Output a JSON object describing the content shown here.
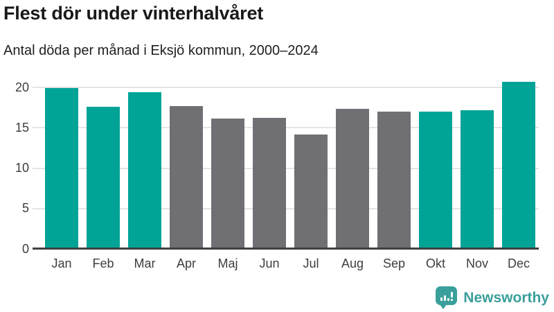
{
  "chart_data": {
    "type": "bar",
    "title": "Flest dör under vinterhalvåret",
    "subtitle": "Antal döda per månad i Eksjö kommun, 2000–2024",
    "categories": [
      "Jan",
      "Feb",
      "Mar",
      "Apr",
      "Maj",
      "Jun",
      "Jul",
      "Aug",
      "Sep",
      "Okt",
      "Nov",
      "Dec"
    ],
    "values": [
      19.9,
      17.6,
      19.4,
      17.7,
      16.1,
      16.2,
      14.2,
      17.3,
      17.0,
      17.0,
      17.2,
      20.7
    ],
    "highlighted": [
      true,
      true,
      true,
      false,
      false,
      false,
      false,
      false,
      false,
      true,
      true,
      true
    ],
    "yticks": [
      0,
      5,
      10,
      15,
      20
    ],
    "ylim": [
      0,
      20
    ],
    "xlabel": "",
    "ylabel": "",
    "grid": "horizontal",
    "legend": "none",
    "colors": {
      "highlight": "#00a496",
      "default": "#706f74",
      "gridline": "#e4e4e4",
      "axis_line": "#404044",
      "axis_text": "#3d3d3d"
    }
  },
  "branding": {
    "logo_text": "Newsworthy",
    "logo_color": "#3a9f9b",
    "logo_icon": "speech-bubble-bar-chart-exclamation"
  }
}
